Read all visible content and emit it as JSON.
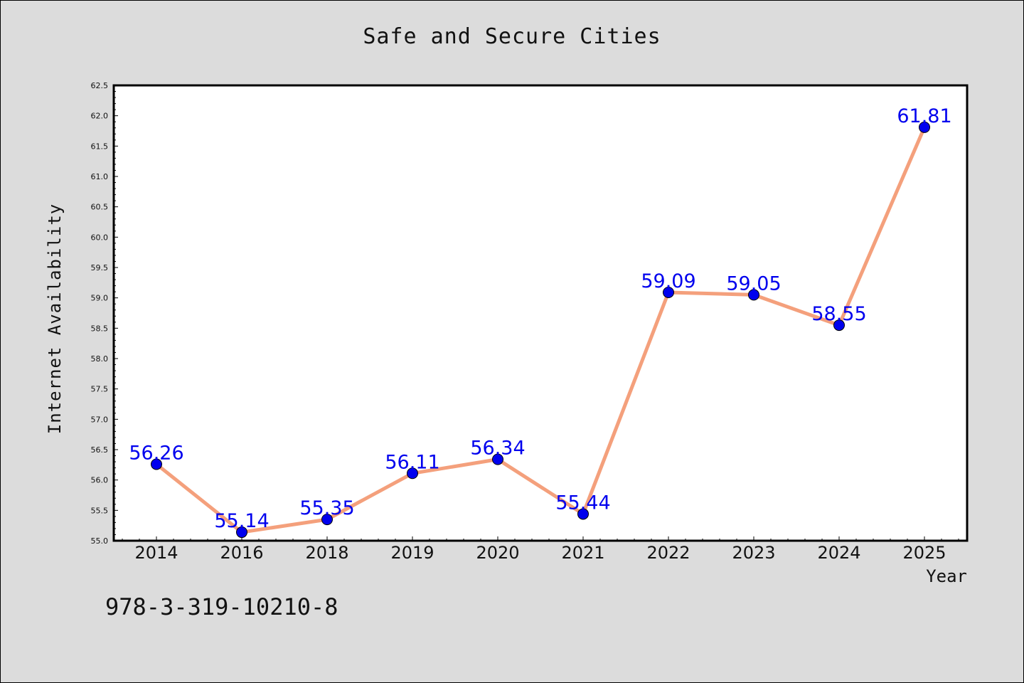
{
  "chart_data": {
    "type": "line",
    "title": "Safe and Secure Cities",
    "xlabel": "Year",
    "ylabel": "Internet Availability",
    "categories": [
      "2014",
      "2016",
      "2018",
      "2019",
      "2020",
      "2021",
      "2022",
      "2023",
      "2024",
      "2025"
    ],
    "series": [
      {
        "values": [
          56.26,
          55.14,
          55.35,
          56.11,
          56.34,
          55.44,
          59.09,
          59.05,
          58.55,
          61.81
        ],
        "data_labels": [
          "56.26",
          "55.14",
          "55.35",
          "56.11",
          "56.34",
          "55.44",
          "59.09",
          "59.05",
          "58.55",
          "61.81"
        ]
      }
    ],
    "ylim": [
      55.0,
      62.5
    ],
    "yticks": [
      "55.0",
      "55.5",
      "56.0",
      "56.5",
      "57.0",
      "57.5",
      "58.0",
      "58.5",
      "59.0",
      "59.5",
      "60.0",
      "60.5",
      "61.0",
      "61.5",
      "62.0",
      "62.5"
    ],
    "grid": false,
    "colors": {
      "line": "#f4a07c",
      "marker": "#0000ee",
      "label": "#0000ee",
      "plot_background": "#ffffff",
      "figure_background": "#dcdcdc"
    }
  },
  "footer": {
    "isbn": "978-3-319-10210-8"
  }
}
